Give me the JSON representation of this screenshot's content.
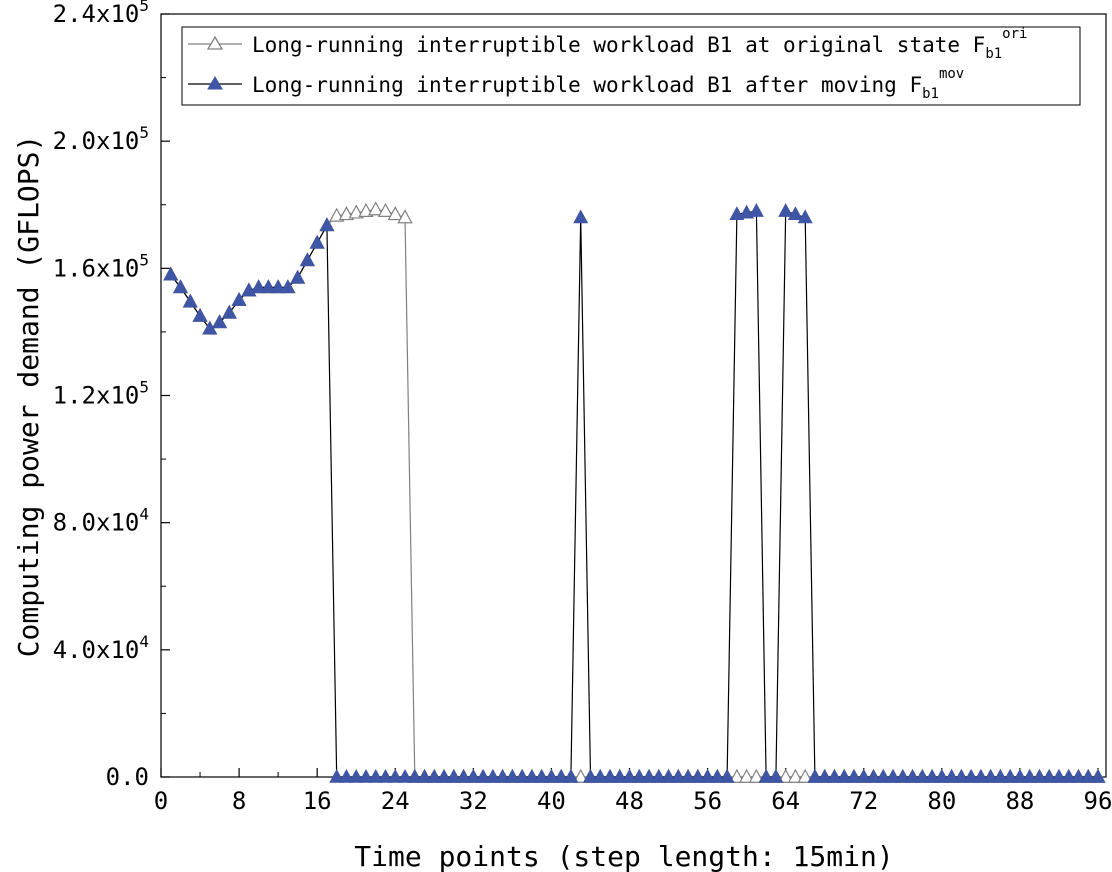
{
  "chart_data": {
    "type": "line",
    "xlabel": "Time points (step length: 15min)",
    "ylabel": "Computing power demand (GFLOPS)",
    "xlim": [
      0,
      96
    ],
    "ylim": [
      0,
      240000
    ],
    "x_ticks": [
      "0",
      "8",
      "16",
      "24",
      "32",
      "40",
      "48",
      "56",
      "64",
      "72",
      "80",
      "88",
      "96"
    ],
    "y_ticks": [
      {
        "value": 0,
        "base": "0.0",
        "exp": ""
      },
      {
        "value": 40000,
        "base": "4.0x10",
        "exp": "4"
      },
      {
        "value": 80000,
        "base": "8.0x10",
        "exp": "4"
      },
      {
        "value": 120000,
        "base": "1.2x10",
        "exp": "5"
      },
      {
        "value": 160000,
        "base": "1.6x10",
        "exp": "5"
      },
      {
        "value": 200000,
        "base": "2.0x10",
        "exp": "5"
      },
      {
        "value": 240000,
        "base": "2.4x10",
        "exp": "5"
      }
    ],
    "grid": false,
    "legend_position": "top",
    "series": [
      {
        "name": "Long-running interruptible workload B1 at original state F",
        "name_sub": "b1",
        "name_sup": "ori",
        "color": "#808080",
        "marker": "hollow-triangle",
        "x": [
          1,
          2,
          3,
          4,
          5,
          6,
          7,
          8,
          9,
          10,
          11,
          12,
          13,
          14,
          15,
          16,
          17,
          18,
          19,
          20,
          21,
          22,
          23,
          24,
          25,
          26,
          27,
          28,
          29,
          30,
          31,
          32,
          33,
          34,
          35,
          36,
          37,
          38,
          39,
          40,
          41,
          42,
          43,
          44,
          45,
          46,
          47,
          48,
          49,
          50,
          51,
          52,
          53,
          54,
          55,
          56,
          57,
          58,
          59,
          60,
          61,
          62,
          63,
          64,
          65,
          66,
          67,
          68,
          69,
          70,
          71,
          72,
          73,
          74,
          75,
          76,
          77,
          78,
          79,
          80,
          81,
          82,
          83,
          84,
          85,
          86,
          87,
          88,
          89,
          90,
          91,
          92,
          93,
          94,
          95,
          96
        ],
        "values": [
          158000,
          154000,
          149500,
          145000,
          141000,
          143000,
          146000,
          150000,
          153000,
          154000,
          154000,
          154000,
          154000,
          157000,
          162500,
          168000,
          173500,
          176500,
          177000,
          177500,
          178000,
          178500,
          178000,
          177000,
          176000,
          0,
          0,
          0,
          0,
          0,
          0,
          0,
          0,
          0,
          0,
          0,
          0,
          0,
          0,
          0,
          0,
          0,
          0,
          0,
          0,
          0,
          0,
          0,
          0,
          0,
          0,
          0,
          0,
          0,
          0,
          0,
          0,
          0,
          0,
          0,
          0,
          0,
          0,
          0,
          0,
          0,
          0,
          0,
          0,
          0,
          0,
          0,
          0,
          0,
          0,
          0,
          0,
          0,
          0,
          0,
          0,
          0,
          0,
          0,
          0,
          0,
          0,
          0,
          0,
          0,
          0,
          0,
          0,
          0,
          0,
          0
        ]
      },
      {
        "name": "Long-running interruptible workload B1 after moving F",
        "name_sub": "b1",
        "name_sup": "mov",
        "color": "#3f55a5",
        "marker": "filled-triangle",
        "x": [
          1,
          2,
          3,
          4,
          5,
          6,
          7,
          8,
          9,
          10,
          11,
          12,
          13,
          14,
          15,
          16,
          17,
          18,
          19,
          20,
          21,
          22,
          23,
          24,
          25,
          26,
          27,
          28,
          29,
          30,
          31,
          32,
          33,
          34,
          35,
          36,
          37,
          38,
          39,
          40,
          41,
          42,
          43,
          44,
          45,
          46,
          47,
          48,
          49,
          50,
          51,
          52,
          53,
          54,
          55,
          56,
          57,
          58,
          59,
          60,
          61,
          62,
          63,
          64,
          65,
          66,
          67,
          68,
          69,
          70,
          71,
          72,
          73,
          74,
          75,
          76,
          77,
          78,
          79,
          80,
          81,
          82,
          83,
          84,
          85,
          86,
          87,
          88,
          89,
          90,
          91,
          92,
          93,
          94,
          95,
          96
        ],
        "values": [
          158000,
          154000,
          149500,
          145000,
          141000,
          143000,
          146000,
          150000,
          153000,
          154000,
          154000,
          154000,
          154000,
          157000,
          162500,
          168000,
          173500,
          0,
          0,
          0,
          0,
          0,
          0,
          0,
          0,
          0,
          0,
          0,
          0,
          0,
          0,
          0,
          0,
          0,
          0,
          0,
          0,
          0,
          0,
          0,
          0,
          0,
          176000,
          0,
          0,
          0,
          0,
          0,
          0,
          0,
          0,
          0,
          0,
          0,
          0,
          0,
          0,
          0,
          177000,
          177500,
          178000,
          0,
          0,
          178000,
          177000,
          176000,
          0,
          0,
          0,
          0,
          0,
          0,
          0,
          0,
          0,
          0,
          0,
          0,
          0,
          0,
          0,
          0,
          0,
          0,
          0,
          0,
          0,
          0,
          0,
          0,
          0,
          0,
          0,
          0,
          0,
          0
        ]
      }
    ]
  }
}
